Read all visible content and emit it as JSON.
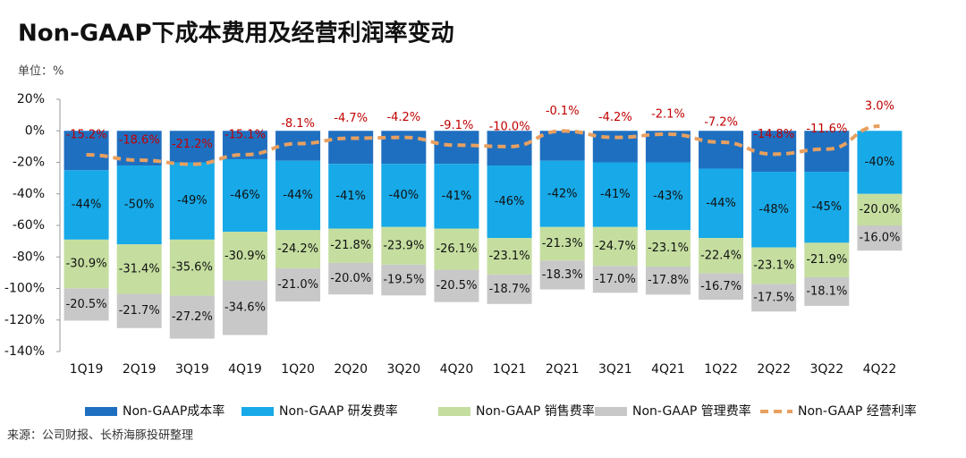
{
  "chart_data": {
    "type": "stacked_bar_line",
    "title": "Non-GAAP下成本费用及经营利润率变动",
    "unit_label": "单位：%",
    "source": "来源：公司财报、长桥海豚投研整理",
    "categories": [
      "1Q19",
      "2Q19",
      "3Q19",
      "4Q19",
      "1Q20",
      "2Q20",
      "3Q20",
      "4Q20",
      "1Q21",
      "2Q21",
      "3Q21",
      "4Q21",
      "1Q22",
      "2Q22",
      "3Q22",
      "4Q22"
    ],
    "series": [
      {
        "name": "Non-GAAP成本率",
        "color": "#1f6fc0",
        "kind": "bar",
        "values": [
          -25,
          -22,
          -20,
          -18,
          -19,
          -21,
          -21,
          -21,
          -22,
          -19,
          -20,
          -20,
          -24,
          -26,
          -26,
          null
        ]
      },
      {
        "name": "Non-GAAP 研发费率",
        "color": "#17a9e8",
        "kind": "bar",
        "values": [
          -44,
          -50,
          -49,
          -46,
          -44,
          -41,
          -40,
          -41,
          -46,
          -42,
          -41,
          -43,
          -44,
          -48,
          -45,
          -40
        ],
        "value_labels": [
          "-44%",
          "-50%",
          "-49%",
          "-46%",
          "-44%",
          "-41%",
          "-40%",
          "-41%",
          "-46%",
          "-42%",
          "-41%",
          "-43%",
          "-44%",
          "-48%",
          "-45%",
          "-40%"
        ]
      },
      {
        "name": "Non-GAAP 销售费率",
        "color": "#c5dea0",
        "kind": "bar",
        "values": [
          -30.9,
          -31.4,
          -35.6,
          -30.9,
          -24.2,
          -21.8,
          -23.9,
          -26.1,
          -23.1,
          -21.3,
          -24.7,
          -23.1,
          -22.4,
          -23.1,
          -21.9,
          -20.0
        ],
        "value_labels": [
          "-30.9%",
          "-31.4%",
          "-35.6%",
          "-30.9%",
          "-24.2%",
          "-21.8%",
          "-23.9%",
          "-26.1%",
          "-23.1%",
          "-21.3%",
          "-24.7%",
          "-23.1%",
          "-22.4%",
          "-23.1%",
          "-21.9%",
          "-20.0%"
        ]
      },
      {
        "name": "Non-GAAP 管理费率",
        "color": "#c8c8c8",
        "kind": "bar",
        "values": [
          -20.5,
          -21.7,
          -27.2,
          -34.6,
          -21.0,
          -20.0,
          -19.5,
          -20.5,
          -18.7,
          -18.3,
          -17.0,
          -17.8,
          -16.7,
          -17.5,
          -18.1,
          -16.0
        ],
        "value_labels": [
          "-20.5%",
          "-21.7%",
          "-27.2%",
          "-34.6%",
          "-21.0%",
          "-20.0%",
          "-19.5%",
          "-20.5%",
          "-18.7%",
          "-18.3%",
          "-17.0%",
          "-17.8%",
          "-16.7%",
          "-17.5%",
          "-18.1%",
          "-16.0%"
        ]
      },
      {
        "name": "Non-GAAP 经营利率",
        "color": "#e8a060",
        "kind": "line",
        "values": [
          -15.2,
          -18.6,
          -21.2,
          -15.1,
          -8.1,
          -4.7,
          -4.2,
          -9.1,
          -10.0,
          -0.1,
          -4.2,
          -2.1,
          -7.2,
          -14.8,
          -11.6,
          3.0
        ],
        "value_labels": [
          "-15.2%",
          "-18.6%",
          "-21.2%",
          "-15.1%",
          "-8.1%",
          "-4.7%",
          "-4.2%",
          "-9.1%",
          "-10.0%",
          "-0.1%",
          "-4.2%",
          "-2.1%",
          "-7.2%",
          "-14.8%",
          "-11.6%",
          "3.0%"
        ]
      }
    ],
    "ylim": [
      -140,
      20
    ],
    "yticks": [
      {
        "value": 20,
        "label": "20%"
      },
      {
        "value": 0,
        "label": "0%"
      },
      {
        "value": -20,
        "label": "-20%"
      },
      {
        "value": -40,
        "label": "-40%"
      },
      {
        "value": -60,
        "label": "-60%"
      },
      {
        "value": -80,
        "label": "-80%"
      },
      {
        "value": -100,
        "label": "-100%"
      },
      {
        "value": -120,
        "label": "-120%"
      },
      {
        "value": -140,
        "label": "-140%"
      }
    ]
  }
}
